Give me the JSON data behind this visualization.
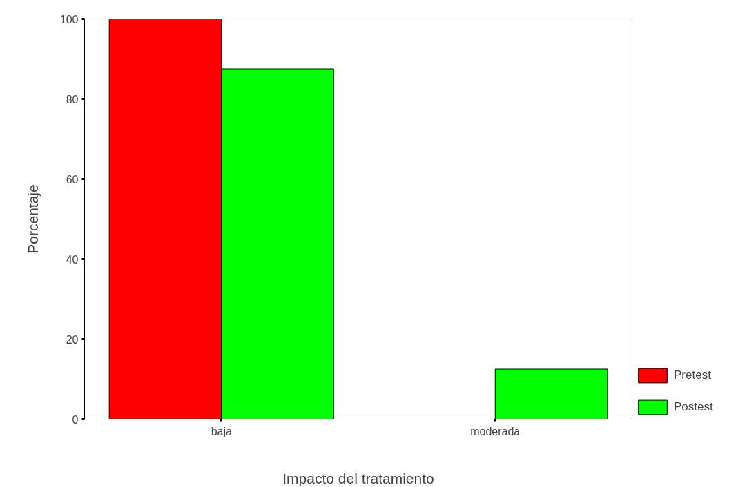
{
  "chart_data": {
    "type": "bar",
    "xlabel": "Impacto del tratamiento",
    "ylabel": "Porcentaje",
    "categories": [
      "baja",
      "moderada"
    ],
    "series": [
      {
        "name": "Pretest",
        "color": "#ff0000",
        "values": [
          100,
          0
        ]
      },
      {
        "name": "Postest",
        "color": "#00ff00",
        "values": [
          87.5,
          12.5
        ]
      }
    ],
    "ylim": [
      0,
      100
    ],
    "yticks": [
      0,
      20,
      40,
      60,
      80,
      100
    ],
    "grid": false,
    "legend": "bottom right"
  }
}
